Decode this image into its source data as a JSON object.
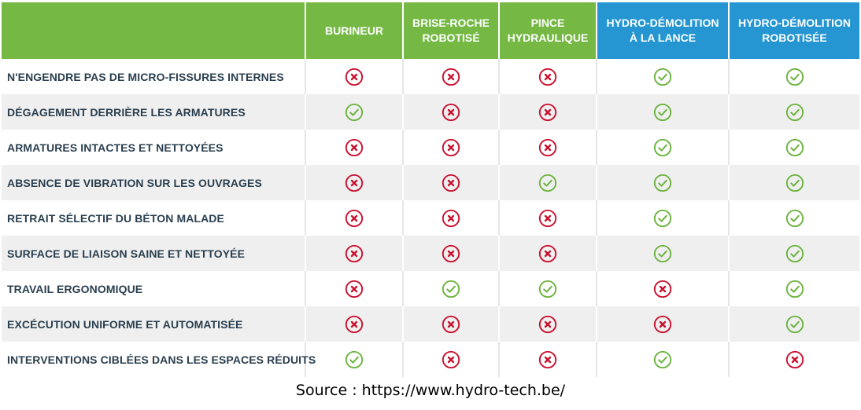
{
  "colors": {
    "green_header": "#75b944",
    "blue_header": "#2596d1",
    "check": "#6cb33f",
    "cross": "#c8102e",
    "label_text": "#2a3f4f",
    "row_alt": "#efefef"
  },
  "columns": [
    {
      "line1": "BURINEUR",
      "line2": "",
      "style": "green"
    },
    {
      "line1": "BRISE-ROCHE",
      "line2": "ROBOTISÉ",
      "style": "green"
    },
    {
      "line1": "PINCE",
      "line2": "HYDRAULIQUE",
      "style": "green"
    },
    {
      "line1": "HYDRO-DÉMOLITION",
      "line2": "À LA LANCE",
      "style": "blue"
    },
    {
      "line1": "HYDRO-DÉMOLITION",
      "line2": "ROBOTISÉE",
      "style": "blue"
    }
  ],
  "rows": [
    {
      "label": "N'ENGENDRE PAS DE MICRO-FISSURES INTERNES",
      "values": [
        "cross",
        "cross",
        "cross",
        "check",
        "check"
      ]
    },
    {
      "label": "DÉGAGEMENT DERRIÈRE LES ARMATURES",
      "values": [
        "check",
        "cross",
        "cross",
        "check",
        "check"
      ]
    },
    {
      "label": "ARMATURES INTACTES ET NETTOYÉES",
      "values": [
        "cross",
        "cross",
        "cross",
        "check",
        "check"
      ]
    },
    {
      "label": "ABSENCE DE VIBRATION SUR LES OUVRAGES",
      "values": [
        "cross",
        "cross",
        "check",
        "check",
        "check"
      ]
    },
    {
      "label": "RETRAIT SÉLECTIF DU BÉTON MALADE",
      "values": [
        "cross",
        "cross",
        "cross",
        "check",
        "check"
      ]
    },
    {
      "label": "SURFACE DE LIAISON SAINE ET NETTOYÉE",
      "values": [
        "cross",
        "cross",
        "cross",
        "check",
        "check"
      ]
    },
    {
      "label": "TRAVAIL ERGONOMIQUE",
      "values": [
        "cross",
        "check",
        "check",
        "cross",
        "check"
      ]
    },
    {
      "label": "EXCÉCUTION UNIFORME ET AUTOMATISÉE",
      "values": [
        "cross",
        "cross",
        "cross",
        "cross",
        "check"
      ]
    },
    {
      "label": "INTERVENTIONS CIBLÉES DANS LES ESPACES RÉDUITS",
      "values": [
        "check",
        "cross",
        "cross",
        "check",
        "cross"
      ]
    }
  ],
  "source": "Source : https://www.hydro-tech.be/"
}
